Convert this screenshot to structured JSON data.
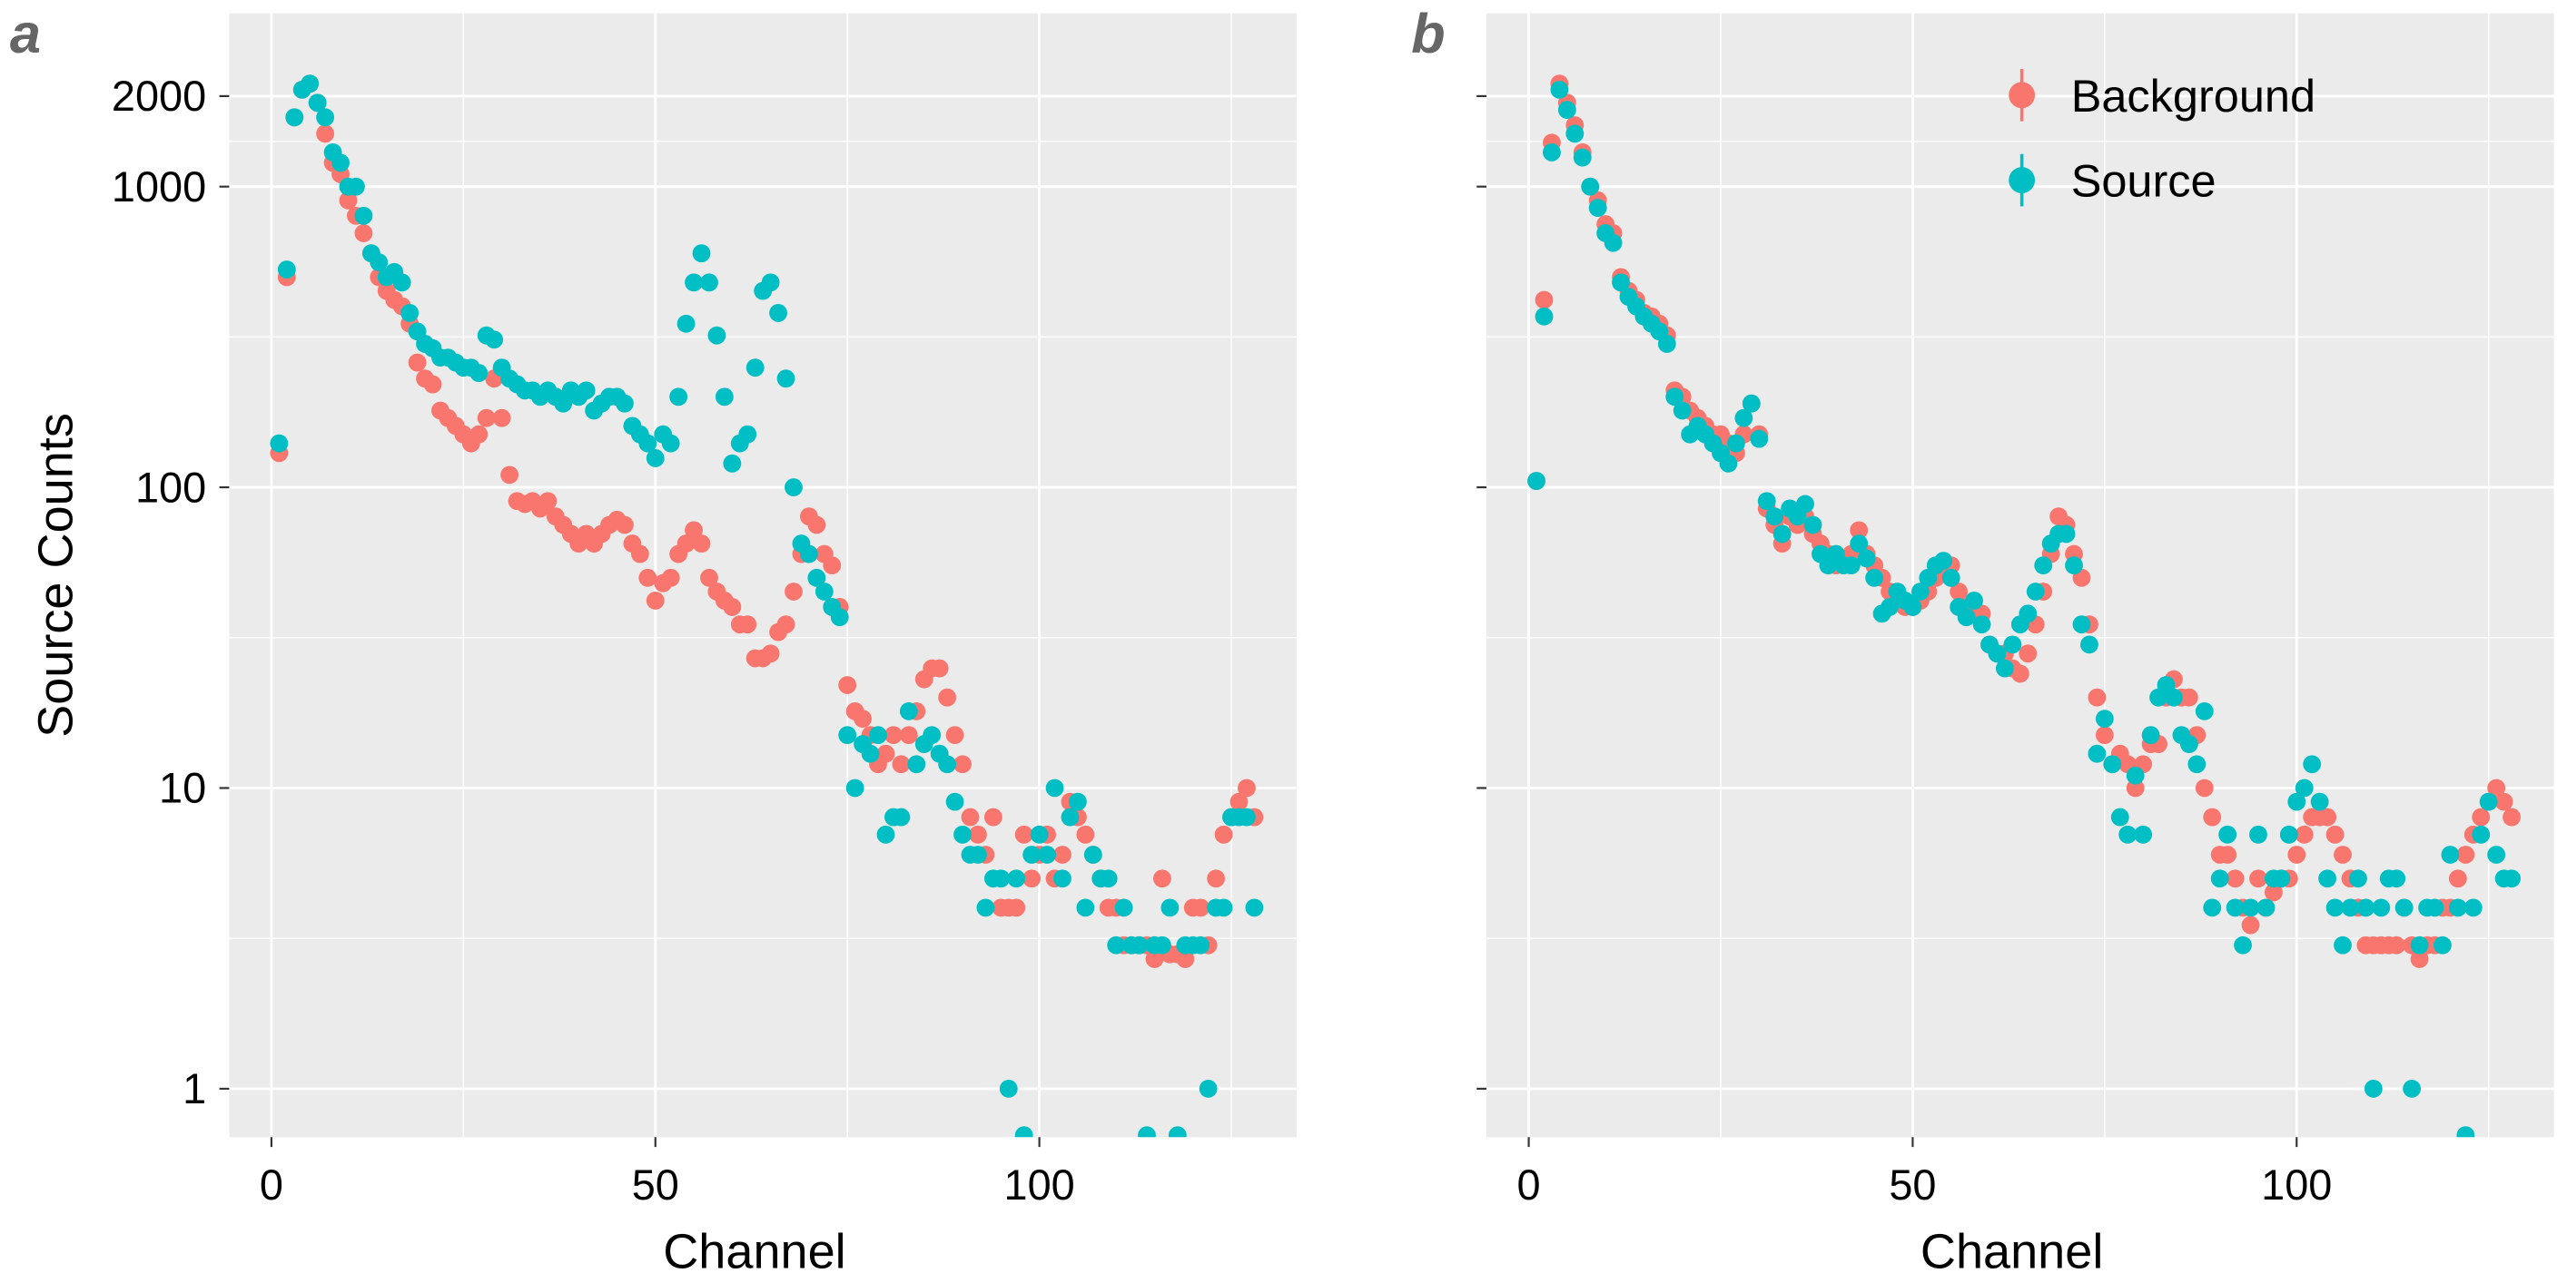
{
  "chart_data": [
    {
      "type": "scatter",
      "panel": "a",
      "xlabel": "Channel",
      "ylabel": "Source Counts",
      "ylog": true,
      "grid": true,
      "xlim": [
        -5.5,
        133.5
      ],
      "ylim": [
        0.69,
        3770
      ],
      "xticks": [
        0,
        50,
        100
      ],
      "yticks": [
        1,
        10,
        100,
        1000,
        2000
      ],
      "xminor": [
        25,
        75,
        125
      ],
      "yminor": [
        3.162,
        31.62,
        316.2,
        1414
      ],
      "x": [
        1,
        2,
        3,
        4,
        5,
        6,
        7,
        8,
        9,
        10,
        11,
        12,
        13,
        14,
        15,
        16,
        17,
        18,
        19,
        20,
        21,
        22,
        23,
        24,
        25,
        26,
        27,
        28,
        29,
        30,
        31,
        32,
        33,
        34,
        35,
        36,
        37,
        38,
        39,
        40,
        41,
        42,
        43,
        44,
        45,
        46,
        47,
        48,
        49,
        50,
        51,
        52,
        53,
        54,
        55,
        56,
        57,
        58,
        59,
        60,
        61,
        62,
        63,
        64,
        65,
        66,
        67,
        68,
        69,
        70,
        71,
        72,
        73,
        74,
        75,
        76,
        77,
        78,
        79,
        80,
        81,
        82,
        83,
        84,
        85,
        86,
        87,
        88,
        89,
        90,
        91,
        92,
        93,
        94,
        95,
        96,
        97,
        98,
        99,
        100,
        101,
        102,
        103,
        104,
        105,
        106,
        107,
        108,
        109,
        110,
        111,
        112,
        113,
        114,
        115,
        116,
        117,
        118,
        119,
        120,
        121,
        122,
        123,
        124,
        125,
        126,
        127,
        128
      ],
      "series": [
        {
          "color": "#F8766D",
          "values": [
            130,
            500,
            1700,
            2100,
            2200,
            1900,
            1500,
            1200,
            1100,
            900,
            800,
            700,
            600,
            500,
            450,
            420,
            400,
            350,
            260,
            230,
            220,
            180,
            170,
            160,
            150,
            140,
            150,
            170,
            230,
            170,
            110,
            90,
            88,
            90,
            85,
            90,
            80,
            75,
            70,
            65,
            70,
            65,
            70,
            75,
            78,
            75,
            65,
            60,
            50,
            42,
            48,
            50,
            60,
            65,
            72,
            65,
            50,
            45,
            42,
            40,
            35,
            35,
            27,
            27,
            28,
            33,
            35,
            45,
            60,
            80,
            75,
            60,
            55,
            40,
            22,
            18,
            17,
            15,
            12,
            13,
            15,
            12,
            15,
            18,
            23,
            25,
            25,
            20,
            15,
            12,
            8,
            7,
            6,
            8,
            4,
            4,
            4,
            7,
            5,
            6,
            7,
            5,
            6,
            9,
            8,
            7,
            6,
            5,
            4,
            4,
            3,
            3,
            3,
            3,
            2.7,
            5,
            2.8,
            2.8,
            2.7,
            4,
            4,
            3,
            5,
            7,
            8,
            9,
            10,
            8
          ]
        },
        {
          "color": "#00BFC4",
          "values": [
            140,
            530,
            1700,
            2100,
            2200,
            1900,
            1700,
            1300,
            1200,
            1000,
            1000,
            800,
            600,
            560,
            500,
            520,
            480,
            380,
            330,
            300,
            290,
            270,
            270,
            260,
            250,
            250,
            240,
            320,
            310,
            250,
            230,
            220,
            210,
            210,
            200,
            210,
            200,
            190,
            210,
            200,
            210,
            180,
            190,
            200,
            200,
            190,
            160,
            150,
            140,
            125,
            150,
            140,
            200,
            350,
            480,
            600,
            480,
            320,
            200,
            120,
            140,
            150,
            250,
            450,
            480,
            380,
            230,
            100,
            65,
            60,
            50,
            45,
            40,
            37,
            15,
            10,
            14,
            13,
            15,
            7,
            8,
            8,
            18,
            12,
            14,
            15,
            13,
            12,
            9,
            7,
            6,
            6,
            4,
            5,
            5,
            1,
            5,
            0.7,
            6,
            7,
            6,
            10,
            5,
            8,
            9,
            4,
            6,
            5,
            5,
            3,
            4,
            3,
            3,
            0.7,
            3,
            3,
            4,
            0.7,
            3,
            3,
            3,
            1,
            4,
            4,
            8,
            8,
            8,
            4
          ]
        }
      ]
    },
    {
      "type": "scatter",
      "panel": "b",
      "xlabel": "Channel",
      "ylog": true,
      "grid": true,
      "ytick_labels": false,
      "legend": "top right",
      "xlim": [
        -5.5,
        133.5
      ],
      "ylim": [
        0.69,
        3770
      ],
      "xticks": [
        0,
        50,
        100
      ],
      "yticks": [
        1,
        10,
        100,
        1000,
        2000
      ],
      "xminor": [
        25,
        75,
        125
      ],
      "yminor": [
        3.162,
        31.62,
        316.2,
        1414
      ],
      "x": [
        1,
        2,
        3,
        4,
        5,
        6,
        7,
        8,
        9,
        10,
        11,
        12,
        13,
        14,
        15,
        16,
        17,
        18,
        19,
        20,
        21,
        22,
        23,
        24,
        25,
        26,
        27,
        28,
        29,
        30,
        31,
        32,
        33,
        34,
        35,
        36,
        37,
        38,
        39,
        40,
        41,
        42,
        43,
        44,
        45,
        46,
        47,
        48,
        49,
        50,
        51,
        52,
        53,
        54,
        55,
        56,
        57,
        58,
        59,
        60,
        61,
        62,
        63,
        64,
        65,
        66,
        67,
        68,
        69,
        70,
        71,
        72,
        73,
        74,
        75,
        76,
        77,
        78,
        79,
        80,
        81,
        82,
        83,
        84,
        85,
        86,
        87,
        88,
        89,
        90,
        91,
        92,
        93,
        94,
        95,
        96,
        97,
        98,
        99,
        100,
        101,
        102,
        103,
        104,
        105,
        106,
        107,
        108,
        109,
        110,
        111,
        112,
        113,
        114,
        115,
        116,
        117,
        118,
        119,
        120,
        121,
        122,
        123,
        124,
        125,
        126,
        127,
        128
      ],
      "series": [
        {
          "name": "Background",
          "color": "#F8766D",
          "values": [
            105,
            420,
            1400,
            2200,
            1900,
            1600,
            1300,
            1000,
            900,
            750,
            700,
            500,
            450,
            420,
            380,
            370,
            350,
            320,
            210,
            200,
            180,
            170,
            160,
            150,
            150,
            140,
            130,
            150,
            190,
            150,
            85,
            75,
            65,
            80,
            75,
            80,
            70,
            65,
            60,
            55,
            58,
            60,
            72,
            60,
            55,
            50,
            45,
            42,
            40,
            40,
            42,
            45,
            50,
            55,
            55,
            45,
            40,
            38,
            38,
            30,
            28,
            28,
            25,
            24,
            28,
            35,
            45,
            60,
            80,
            75,
            60,
            50,
            35,
            20,
            15,
            12,
            13,
            12,
            10,
            12,
            14,
            14,
            20,
            23,
            20,
            20,
            15,
            10,
            8,
            6,
            6,
            5,
            4,
            3.5,
            5,
            4,
            4.5,
            5,
            5,
            6,
            7,
            8,
            8,
            8,
            7,
            6,
            5,
            4,
            3,
            3,
            3,
            3,
            3,
            4,
            3,
            2.7,
            3,
            3,
            4,
            4,
            5,
            6,
            7,
            8,
            9,
            10,
            9,
            8
          ]
        },
        {
          "name": "Source",
          "color": "#00BFC4",
          "values": [
            105,
            370,
            1300,
            2100,
            1800,
            1500,
            1250,
            1000,
            850,
            700,
            650,
            480,
            430,
            400,
            370,
            350,
            330,
            300,
            200,
            180,
            150,
            160,
            150,
            140,
            130,
            120,
            140,
            170,
            190,
            145,
            90,
            80,
            70,
            85,
            80,
            88,
            75,
            60,
            55,
            60,
            55,
            55,
            65,
            58,
            50,
            38,
            40,
            45,
            42,
            40,
            45,
            50,
            55,
            57,
            50,
            40,
            37,
            42,
            35,
            30,
            28,
            25,
            30,
            35,
            38,
            45,
            55,
            65,
            70,
            70,
            55,
            35,
            30,
            13,
            17,
            12,
            8,
            7,
            11,
            7,
            15,
            20,
            22,
            20,
            15,
            14,
            12,
            18,
            4,
            5,
            7,
            4,
            3,
            4,
            7,
            4,
            5,
            5,
            7,
            9,
            10,
            12,
            9,
            5,
            4,
            3,
            4,
            5,
            4,
            1,
            4,
            5,
            5,
            4,
            1,
            3,
            4,
            4,
            3,
            6,
            4,
            0.7,
            4,
            7,
            9,
            6,
            5,
            5
          ]
        }
      ]
    }
  ]
}
